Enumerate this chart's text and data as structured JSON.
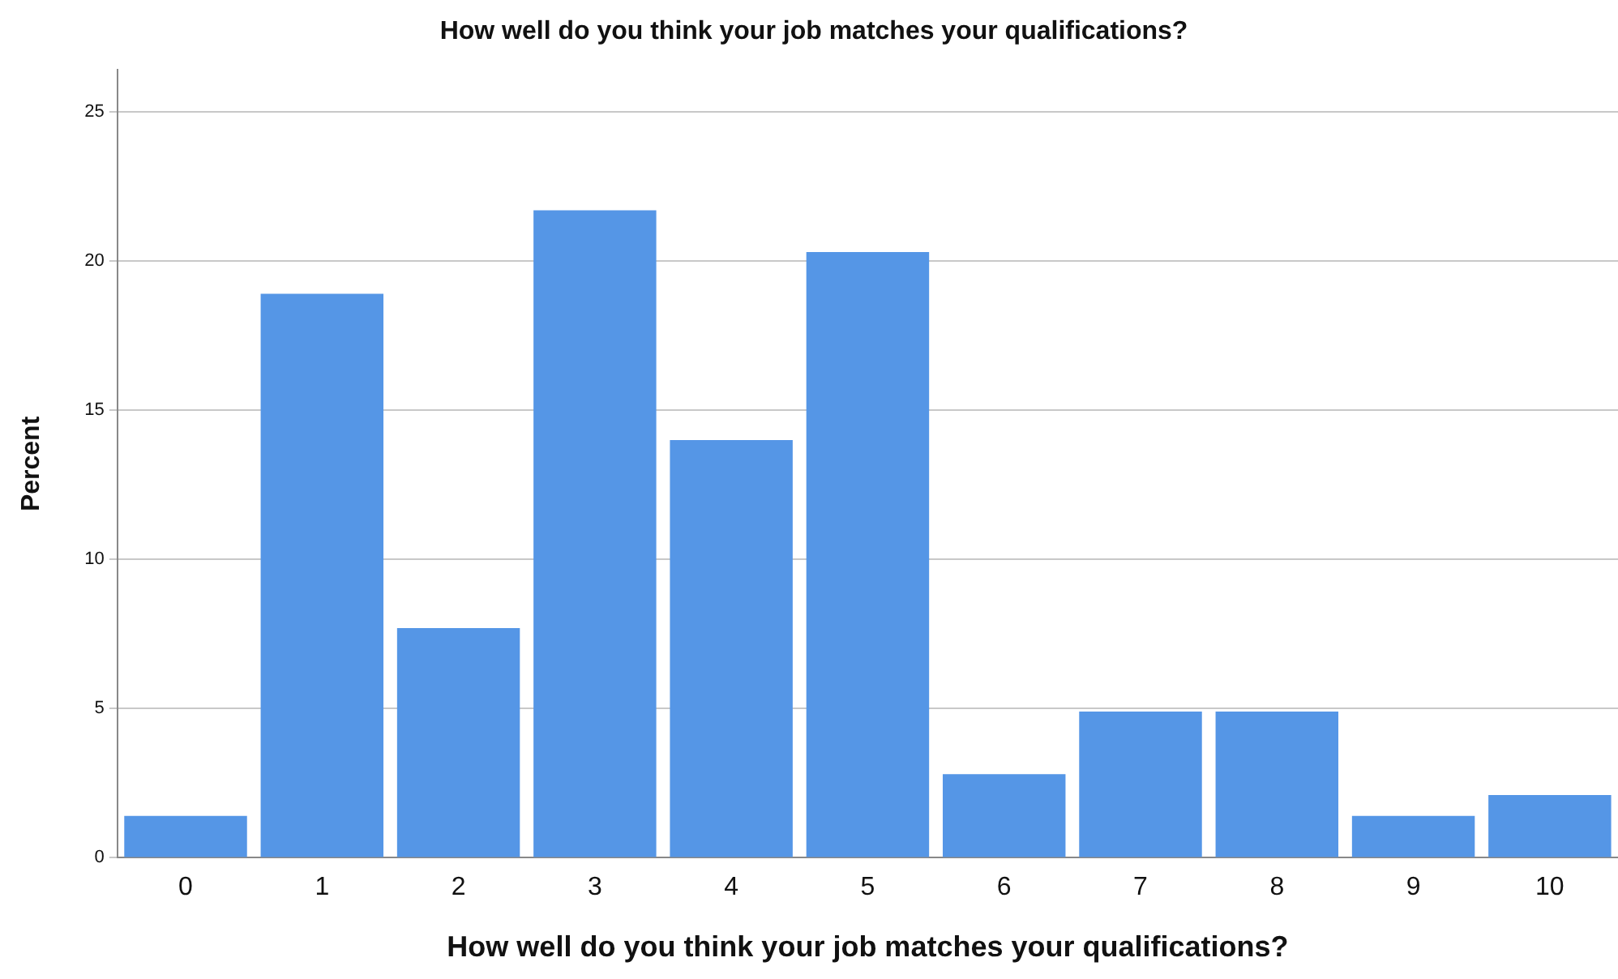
{
  "chart_data": {
    "type": "bar",
    "title": "How well do you think your job matches your qualifications?",
    "xlabel": "How well do you think your job matches your qualifications?",
    "ylabel": "Percent",
    "categories": [
      "0",
      "1",
      "2",
      "3",
      "4",
      "5",
      "6",
      "7",
      "8",
      "9",
      "10"
    ],
    "values": [
      1.4,
      18.9,
      7.7,
      21.7,
      14.0,
      20.3,
      2.8,
      4.9,
      4.9,
      1.4,
      2.1
    ],
    "color": "#5596e6",
    "ylim": [
      0,
      26.4
    ],
    "yticks": [
      0,
      5,
      10,
      15,
      20,
      25
    ],
    "grid": "y",
    "legend": false
  }
}
